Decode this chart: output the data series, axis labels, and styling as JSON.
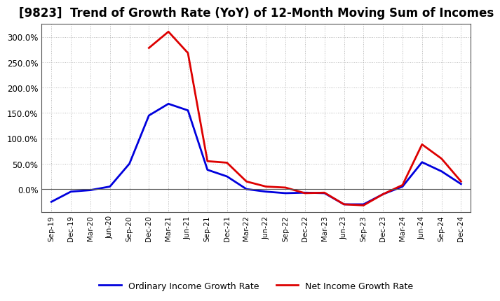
{
  "title": "[9823]  Trend of Growth Rate (YoY) of 12-Month Moving Sum of Incomes",
  "x_labels": [
    "Sep-19",
    "Dec-19",
    "Mar-20",
    "Jun-20",
    "Sep-20",
    "Dec-20",
    "Mar-21",
    "Jun-21",
    "Sep-21",
    "Dec-21",
    "Mar-22",
    "Jun-22",
    "Sep-22",
    "Dec-22",
    "Mar-23",
    "Jun-23",
    "Sep-23",
    "Dec-23",
    "Mar-24",
    "Jun-24",
    "Sep-24",
    "Dec-24"
  ],
  "ordinary_income": [
    -25,
    -5,
    -2,
    5,
    50,
    145,
    168,
    155,
    38,
    25,
    0,
    -5,
    -8,
    -7,
    -8,
    -30,
    -30,
    -10,
    5,
    53,
    35,
    10
  ],
  "net_income": [
    null,
    null,
    null,
    null,
    null,
    278,
    310,
    268,
    55,
    52,
    15,
    5,
    3,
    -8,
    -7,
    -30,
    -32,
    -10,
    8,
    88,
    60,
    15
  ],
  "ylim": [
    -45,
    325
  ],
  "yticks": [
    0,
    50,
    100,
    150,
    200,
    250,
    300
  ],
  "ordinary_color": "#0000dd",
  "net_color": "#dd0000",
  "bg_color": "#ffffff",
  "plot_bg_color": "#ffffff",
  "grid_color": "#999999",
  "legend_ordinary": "Ordinary Income Growth Rate",
  "legend_net": "Net Income Growth Rate",
  "title_fontsize": 12
}
